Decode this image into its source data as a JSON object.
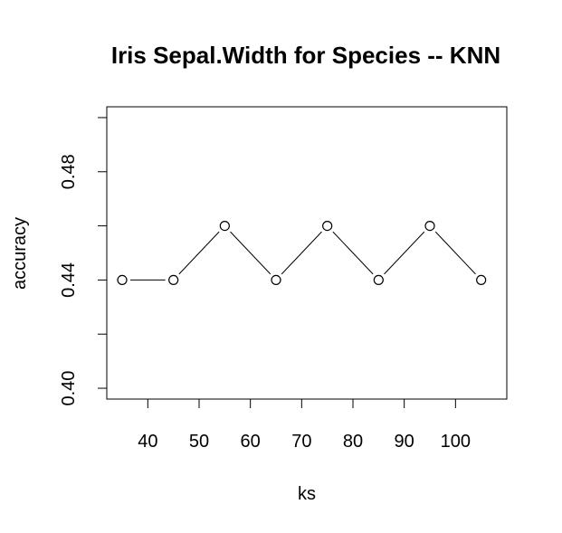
{
  "chart_data": {
    "type": "line",
    "title": "Iris Sepal.Width for Species -- KNN",
    "xlabel": "ks",
    "ylabel": "accuracy",
    "x": [
      35,
      45,
      55,
      65,
      75,
      85,
      95,
      105
    ],
    "series": [
      {
        "values": [
          0.44,
          0.44,
          0.46,
          0.44,
          0.46,
          0.44,
          0.46,
          0.44
        ]
      }
    ],
    "xlim": [
      32,
      110
    ],
    "ylim": [
      0.396,
      0.504
    ],
    "xticks": [
      40,
      50,
      60,
      70,
      80,
      90,
      100
    ],
    "xtick_labels": [
      "40",
      "50",
      "60",
      "70",
      "80",
      "90",
      "100"
    ],
    "yticks": [
      0.4,
      0.42,
      0.44,
      0.46,
      0.48,
      0.5
    ],
    "ytick_labels": [
      "0.40",
      "",
      "0.44",
      "",
      "0.48",
      ""
    ],
    "grid": false,
    "markers": "open-circle",
    "line_style": "gapped-segments",
    "colors": {
      "line": "#000000",
      "marker_fill": "#ffffff",
      "axis": "#000000"
    }
  }
}
